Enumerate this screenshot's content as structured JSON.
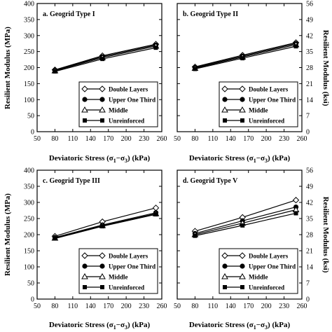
{
  "figure": {
    "xlabel": "Deviatoric Stress (σ1−σ3) (kPa)",
    "ylabel_left": "Resilient Modulus (MPa)",
    "ylabel_right": "Resilient Modulus (ksi)"
  },
  "chart_data": [
    {
      "type": "line",
      "title": "a. Geogrid Type I",
      "xlabel": "Deviatoric Stress (σ1−σ3) (kPa)",
      "ylabel": "Resilient Modulus (MPa)",
      "xlim": [
        50,
        260
      ],
      "ylim": [
        0,
        400
      ],
      "x_ticks": [
        50,
        80,
        110,
        140,
        170,
        200,
        230,
        260
      ],
      "y_ticks": [
        0,
        50,
        100,
        150,
        200,
        250,
        300,
        350,
        400
      ],
      "legend_position": "bottom-right",
      "series": [
        {
          "name": "Double Layers",
          "marker": "diamond-open",
          "x": [
            80,
            160,
            250
          ],
          "y": [
            193,
            237,
            273
          ]
        },
        {
          "name": "Upper One Third",
          "marker": "circle-filled",
          "x": [
            80,
            160,
            250
          ],
          "y": [
            192,
            234,
            270
          ]
        },
        {
          "name": "Middle",
          "marker": "triangle-open",
          "x": [
            80,
            160,
            250
          ],
          "y": [
            190,
            231,
            267
          ]
        },
        {
          "name": "Unreinforced",
          "marker": "square-filled",
          "x": [
            80,
            160,
            250
          ],
          "y": [
            188,
            227,
            262
          ]
        }
      ]
    },
    {
      "type": "line",
      "title": "b. Geogrid Type II",
      "xlabel": "Deviatoric Stress (σ1−σ3) (kPa)",
      "ylabel": "Resilient Modulus (ksi)",
      "xlim": [
        50,
        260
      ],
      "ylim": [
        0,
        56
      ],
      "x_ticks": [
        50,
        80,
        110,
        140,
        170,
        200,
        230,
        260
      ],
      "y_ticks": [
        0,
        7,
        14,
        21,
        28,
        35,
        42,
        49,
        56
      ],
      "legend_position": "bottom-right",
      "series": [
        {
          "name": "Double Layers",
          "marker": "diamond-open",
          "x": [
            80,
            160,
            250
          ],
          "y": [
            28.3,
            33.4,
            38.9
          ]
        },
        {
          "name": "Upper One Third",
          "marker": "circle-filled",
          "x": [
            80,
            160,
            250
          ],
          "y": [
            28.0,
            33.0,
            38.5
          ]
        },
        {
          "name": "Middle",
          "marker": "triangle-open",
          "x": [
            80,
            160,
            250
          ],
          "y": [
            27.7,
            32.6,
            38.0
          ]
        },
        {
          "name": "Unreinforced",
          "marker": "square-filled",
          "x": [
            80,
            160,
            250
          ],
          "y": [
            27.4,
            32.1,
            37.3
          ]
        }
      ]
    },
    {
      "type": "line",
      "title": "c. Geogrid Type III",
      "xlabel": "Deviatoric Stress (σ1−σ3) (kPa)",
      "ylabel": "Resilient Modulus (MPa)",
      "xlim": [
        50,
        260
      ],
      "ylim": [
        0,
        400
      ],
      "x_ticks": [
        50,
        80,
        110,
        140,
        170,
        200,
        230,
        260
      ],
      "y_ticks": [
        0,
        50,
        100,
        150,
        200,
        250,
        300,
        350,
        400
      ],
      "legend_position": "bottom-right",
      "series": [
        {
          "name": "Double Layers",
          "marker": "diamond-open",
          "x": [
            80,
            160,
            250
          ],
          "y": [
            195,
            240,
            283
          ]
        },
        {
          "name": "Upper One Third",
          "marker": "circle-filled",
          "x": [
            80,
            160,
            250
          ],
          "y": [
            191,
            230,
            268
          ]
        },
        {
          "name": "Middle",
          "marker": "triangle-open",
          "x": [
            80,
            160,
            250
          ],
          "y": [
            189,
            228,
            265
          ]
        },
        {
          "name": "Unreinforced",
          "marker": "square-filled",
          "x": [
            80,
            160,
            250
          ],
          "y": [
            188,
            226,
            263
          ]
        }
      ]
    },
    {
      "type": "line",
      "title": "d. Geogrid Type V",
      "xlabel": "Deviatoric Stress (σ1−σ3) (kPa)",
      "ylabel": "Resilient Modulus (ksi)",
      "xlim": [
        50,
        260
      ],
      "ylim": [
        0,
        56
      ],
      "x_ticks": [
        50,
        80,
        110,
        140,
        170,
        200,
        230,
        260
      ],
      "y_ticks": [
        0,
        7,
        14,
        21,
        28,
        35,
        42,
        49,
        56
      ],
      "legend_position": "bottom-right",
      "series": [
        {
          "name": "Double Layers",
          "marker": "diamond-open",
          "x": [
            80,
            160,
            250
          ],
          "y": [
            29.5,
            35.5,
            43.0
          ]
        },
        {
          "name": "Upper One Third",
          "marker": "circle-filled",
          "x": [
            80,
            160,
            250
          ],
          "y": [
            28.5,
            34.0,
            40.0
          ]
        },
        {
          "name": "Middle",
          "marker": "triangle-open",
          "x": [
            80,
            160,
            250
          ],
          "y": [
            28.0,
            33.0,
            38.8
          ]
        },
        {
          "name": "Unreinforced",
          "marker": "square-filled",
          "x": [
            80,
            160,
            250
          ],
          "y": [
            27.5,
            32.0,
            37.3
          ]
        }
      ]
    }
  ]
}
